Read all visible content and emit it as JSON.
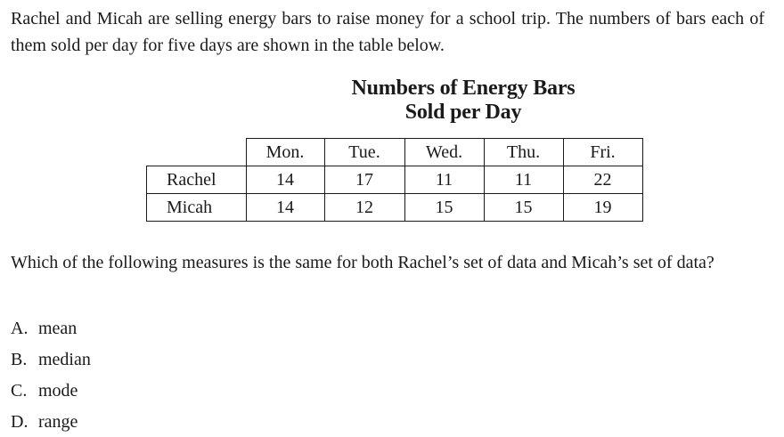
{
  "intro": "Rachel and Micah are selling energy bars to raise money for a school trip. The numbers of bars each of them sold per day for five days are shown in the table below.",
  "table": {
    "title_line1": "Numbers of Energy Bars",
    "title_line2": "Sold per Day",
    "columns": [
      "Mon.",
      "Tue.",
      "Wed.",
      "Thu.",
      "Fri."
    ],
    "rows": [
      {
        "name": "Rachel",
        "values": [
          "14",
          "17",
          "11",
          "11",
          "22"
        ]
      },
      {
        "name": "Micah",
        "values": [
          "14",
          "12",
          "15",
          "15",
          "19"
        ]
      }
    ]
  },
  "question": "Which of the following measures is the same for both Rachel’s set of data and Micah’s set of data?",
  "choices": [
    {
      "letter": "A.",
      "text": "mean"
    },
    {
      "letter": "B.",
      "text": "median"
    },
    {
      "letter": "C.",
      "text": "mode"
    },
    {
      "letter": "D.",
      "text": "range"
    }
  ]
}
